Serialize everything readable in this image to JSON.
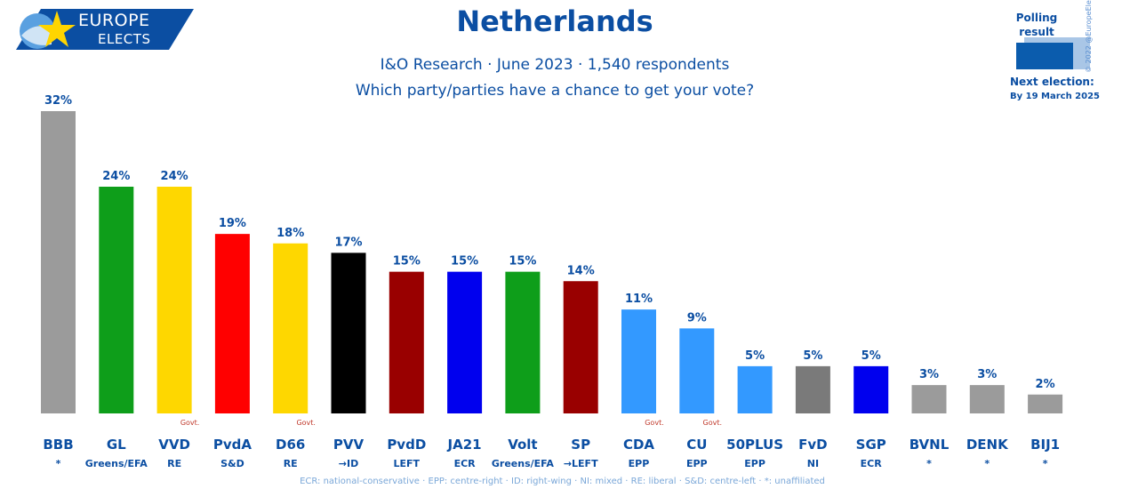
{
  "brand": {
    "line1": "EUROPE",
    "line2": "ELECTS"
  },
  "header": {
    "title": "Netherlands",
    "subtitle": "I&O Research · June 2023 · 1,540 respondents",
    "question": "Which party/parties have a chance to get your vote?"
  },
  "side": {
    "polling_label": "Polling result",
    "copyright": "© 2022 @EuropeElects",
    "next_election_label": "Next election:",
    "next_election_date": "By 19 March 2025"
  },
  "footer": {
    "legend": "ECR: national-conservative · EPP: centre-right · ID: right-wing · NI: mixed · RE: liberal · S&D: centre-left · *: unaffiliated"
  },
  "colors": {
    "accent": "#0b4ea2",
    "govt": "#c0392b"
  },
  "chart_data": {
    "type": "bar",
    "ylim": [
      0,
      32
    ],
    "value_suffix": "%",
    "govt_label": "Govt.",
    "bars": [
      {
        "party": "BBB",
        "group": "*",
        "value": 32,
        "color": "#9b9b9b",
        "govt": false
      },
      {
        "party": "GL",
        "group": "Greens/EFA",
        "value": 24,
        "color": "#0e9e1a",
        "govt": false
      },
      {
        "party": "VVD",
        "group": "RE",
        "value": 24,
        "color": "#fed700",
        "govt": true
      },
      {
        "party": "PvdA",
        "group": "S&D",
        "value": 19,
        "color": "#ff0000",
        "govt": false
      },
      {
        "party": "D66",
        "group": "RE",
        "value": 18,
        "color": "#fed700",
        "govt": true
      },
      {
        "party": "PVV",
        "group": "→ID",
        "value": 17,
        "color": "#000000",
        "govt": false
      },
      {
        "party": "PvdD",
        "group": "LEFT",
        "value": 15,
        "color": "#990000",
        "govt": false
      },
      {
        "party": "JA21",
        "group": "ECR",
        "value": 15,
        "color": "#0000ee",
        "govt": false
      },
      {
        "party": "Volt",
        "group": "Greens/EFA",
        "value": 15,
        "color": "#0e9e1a",
        "govt": false
      },
      {
        "party": "SP",
        "group": "→LEFT",
        "value": 14,
        "color": "#990000",
        "govt": false
      },
      {
        "party": "CDA",
        "group": "EPP",
        "value": 11,
        "color": "#3399ff",
        "govt": true
      },
      {
        "party": "CU",
        "group": "EPP",
        "value": 9,
        "color": "#3399ff",
        "govt": true
      },
      {
        "party": "50PLUS",
        "group": "EPP",
        "value": 5,
        "color": "#3399ff",
        "govt": false
      },
      {
        "party": "FvD",
        "group": "NI",
        "value": 5,
        "color": "#7a7a7a",
        "govt": false
      },
      {
        "party": "SGP",
        "group": "ECR",
        "value": 5,
        "color": "#0000ee",
        "govt": false
      },
      {
        "party": "BVNL",
        "group": "*",
        "value": 3,
        "color": "#9b9b9b",
        "govt": false
      },
      {
        "party": "DENK",
        "group": "*",
        "value": 3,
        "color": "#9b9b9b",
        "govt": false
      },
      {
        "party": "BIJ1",
        "group": "*",
        "value": 2,
        "color": "#9b9b9b",
        "govt": false
      }
    ]
  }
}
